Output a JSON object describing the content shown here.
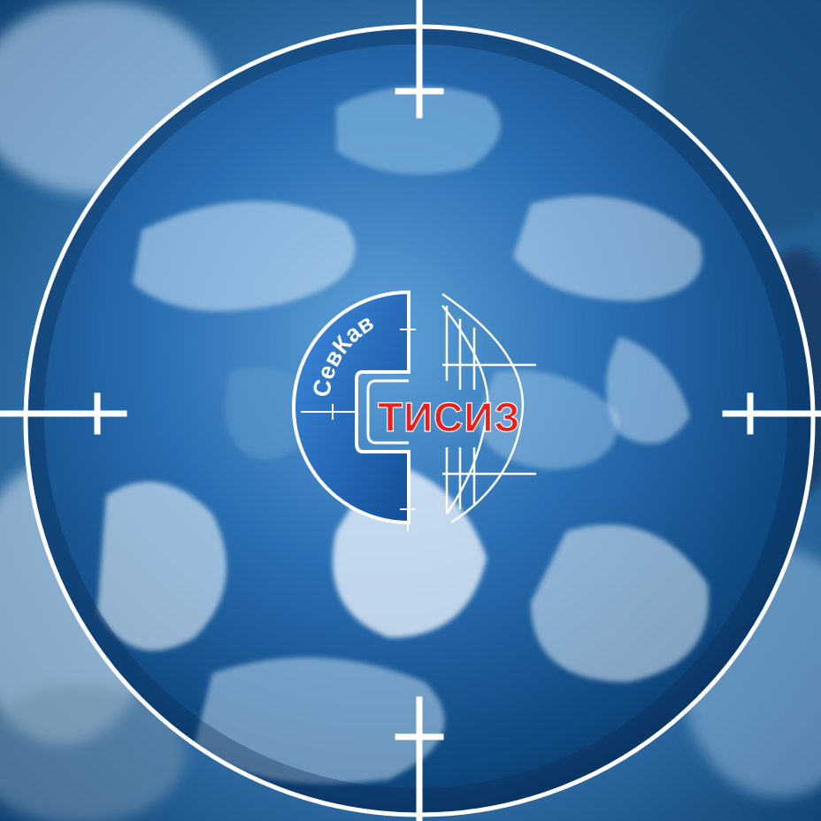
{
  "logo": {
    "top_text": "СевКав",
    "main_text": "ТИСИЗ"
  },
  "colors": {
    "background_dark": "#0d3d6e",
    "background_mid": "#3f7fb4",
    "background_light": "#c9def0",
    "globe_deep": "#0b3c75",
    "globe_mid": "#2a6fb3",
    "globe_light": "#a9d3f2",
    "crosshair": "#ffffff",
    "logo_panel": "#1f66b8",
    "logo_main_text": "#e8201b",
    "logo_top_text": "#ffffff"
  },
  "icons": {
    "crosshair": "crosshair-icon",
    "logo_mark": "globe-logo-icon"
  }
}
